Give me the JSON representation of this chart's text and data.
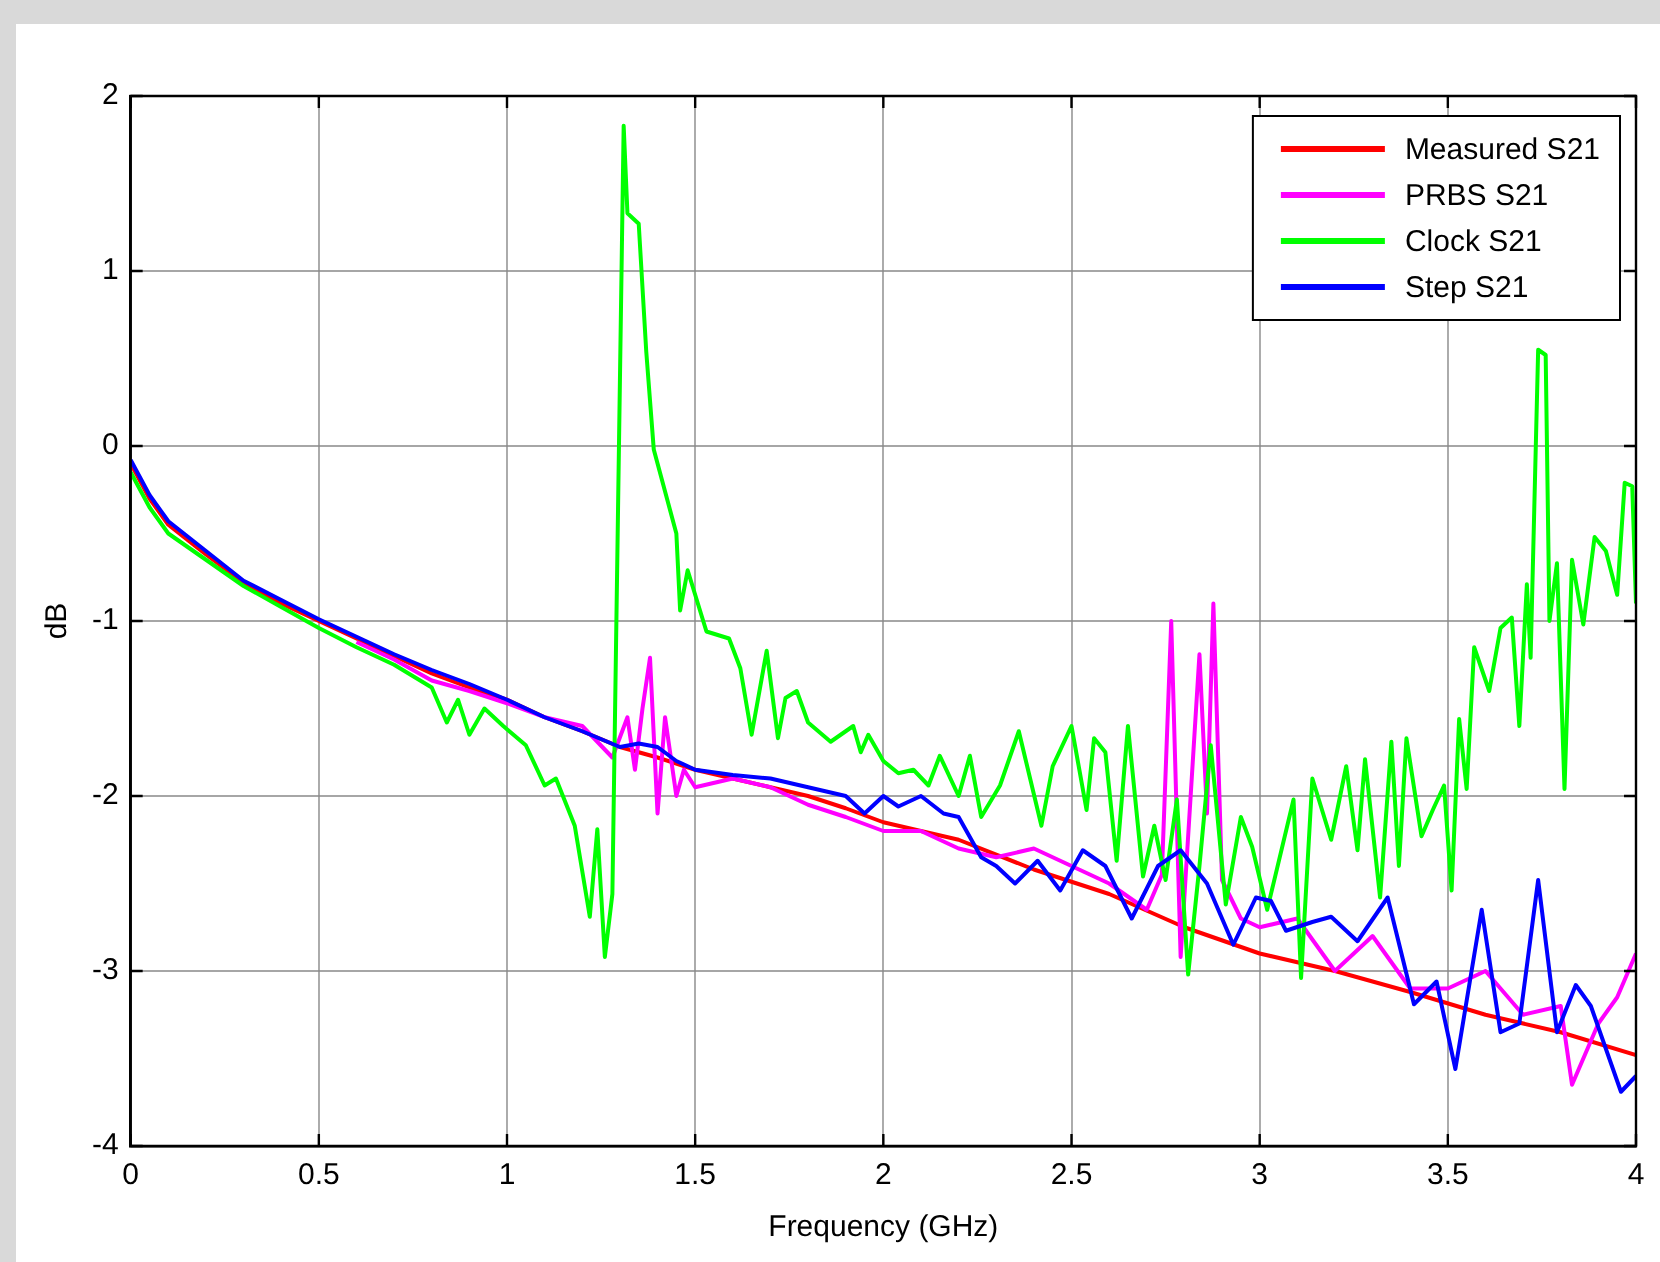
{
  "chart_data": {
    "type": "line",
    "xlabel": "Frequency (GHz)",
    "ylabel": "dB",
    "xlim": [
      0,
      4
    ],
    "xticks": [
      0,
      0.5,
      1,
      1.5,
      2,
      2.5,
      3,
      3.5,
      4
    ],
    "ylim": [
      -4,
      2
    ],
    "yticks": [
      -4,
      -3,
      -2,
      -1,
      0,
      1,
      2
    ],
    "grid": true,
    "legend": "top right",
    "marker": "none",
    "line_style": "solid",
    "series": [
      {
        "name": "Measured S21",
        "color": "#ff0000",
        "x": [
          0,
          0.05,
          0.1,
          0.2,
          0.3,
          0.4,
          0.5,
          0.6,
          0.7,
          0.8,
          0.9,
          1.0,
          1.1,
          1.2,
          1.3,
          1.4,
          1.5,
          1.6,
          1.7,
          1.8,
          1.9,
          2.0,
          2.2,
          2.4,
          2.6,
          2.8,
          3.0,
          3.2,
          3.4,
          3.6,
          3.8,
          4.0
        ],
        "values": [
          -0.1,
          -0.3,
          -0.45,
          -0.62,
          -0.78,
          -0.9,
          -1.0,
          -1.1,
          -1.2,
          -1.3,
          -1.38,
          -1.45,
          -1.55,
          -1.63,
          -1.72,
          -1.78,
          -1.85,
          -1.9,
          -1.95,
          -2.0,
          -2.07,
          -2.15,
          -2.25,
          -2.42,
          -2.56,
          -2.75,
          -2.9,
          -3.0,
          -3.12,
          -3.25,
          -3.35,
          -3.48
        ]
      },
      {
        "name": "PRBS S21",
        "color": "#ff00ff",
        "x": [
          0.6,
          0.7,
          0.8,
          0.9,
          1.0,
          1.1,
          1.2,
          1.28,
          1.32,
          1.34,
          1.36,
          1.38,
          1.4,
          1.42,
          1.45,
          1.47,
          1.5,
          1.6,
          1.7,
          1.8,
          1.9,
          2.0,
          2.1,
          2.2,
          2.3,
          2.4,
          2.5,
          2.6,
          2.7,
          2.74,
          2.765,
          2.79,
          2.84,
          2.86,
          2.877,
          2.9,
          2.95,
          3.0,
          3.1,
          3.2,
          3.3,
          3.4,
          3.5,
          3.6,
          3.7,
          3.8,
          3.83,
          3.9,
          3.95,
          4.0
        ],
        "values": [
          -1.12,
          -1.22,
          -1.34,
          -1.4,
          -1.47,
          -1.55,
          -1.6,
          -1.78,
          -1.55,
          -1.85,
          -1.5,
          -1.21,
          -2.1,
          -1.55,
          -2.0,
          -1.85,
          -1.95,
          -1.9,
          -1.95,
          -2.05,
          -2.12,
          -2.2,
          -2.2,
          -2.3,
          -2.35,
          -2.3,
          -2.4,
          -2.5,
          -2.65,
          -2.45,
          -1.0,
          -2.92,
          -1.19,
          -2.1,
          -0.9,
          -2.48,
          -2.7,
          -2.75,
          -2.7,
          -3.0,
          -2.8,
          -3.1,
          -3.1,
          -3.0,
          -3.25,
          -3.2,
          -3.65,
          -3.3,
          -3.15,
          -2.9
        ]
      },
      {
        "name": "Clock S21",
        "color": "#00ff00",
        "x": [
          0,
          0.05,
          0.1,
          0.2,
          0.3,
          0.4,
          0.5,
          0.6,
          0.7,
          0.8,
          0.84,
          0.87,
          0.9,
          0.94,
          0.99,
          1.05,
          1.1,
          1.13,
          1.18,
          1.22,
          1.24,
          1.26,
          1.28,
          1.31,
          1.32,
          1.35,
          1.37,
          1.39,
          1.45,
          1.46,
          1.48,
          1.53,
          1.59,
          1.62,
          1.65,
          1.69,
          1.72,
          1.74,
          1.77,
          1.8,
          1.86,
          1.92,
          1.94,
          1.96,
          2.0,
          2.04,
          2.08,
          2.12,
          2.15,
          2.2,
          2.23,
          2.26,
          2.31,
          2.36,
          2.39,
          2.42,
          2.45,
          2.5,
          2.54,
          2.56,
          2.59,
          2.62,
          2.65,
          2.69,
          2.72,
          2.75,
          2.78,
          2.81,
          2.84,
          2.87,
          2.91,
          2.95,
          2.98,
          3.02,
          3.09,
          3.11,
          3.14,
          3.19,
          3.23,
          3.26,
          3.28,
          3.32,
          3.35,
          3.37,
          3.39,
          3.43,
          3.46,
          3.49,
          3.51,
          3.53,
          3.55,
          3.57,
          3.61,
          3.64,
          3.67,
          3.69,
          3.71,
          3.72,
          3.74,
          3.76,
          3.77,
          3.79,
          3.81,
          3.83,
          3.86,
          3.89,
          3.92,
          3.95,
          3.97,
          3.99,
          4.0
        ],
        "values": [
          -0.15,
          -0.35,
          -0.5,
          -0.65,
          -0.8,
          -0.92,
          -1.04,
          -1.15,
          -1.25,
          -1.38,
          -1.58,
          -1.45,
          -1.65,
          -1.5,
          -1.6,
          -1.71,
          -1.94,
          -1.9,
          -2.17,
          -2.69,
          -2.19,
          -2.92,
          -2.56,
          1.83,
          1.33,
          1.27,
          0.54,
          -0.02,
          -0.5,
          -0.94,
          -0.71,
          -1.06,
          -1.1,
          -1.27,
          -1.65,
          -1.17,
          -1.67,
          -1.44,
          -1.4,
          -1.58,
          -1.69,
          -1.6,
          -1.75,
          -1.65,
          -1.8,
          -1.87,
          -1.85,
          -1.94,
          -1.77,
          -2.0,
          -1.77,
          -2.12,
          -1.94,
          -1.63,
          -1.9,
          -2.17,
          -1.83,
          -1.6,
          -2.08,
          -1.67,
          -1.75,
          -2.37,
          -1.6,
          -2.46,
          -2.17,
          -2.48,
          -2.02,
          -3.02,
          -2.4,
          -1.71,
          -2.62,
          -2.12,
          -2.29,
          -2.65,
          -2.02,
          -3.04,
          -1.9,
          -2.25,
          -1.83,
          -2.31,
          -1.79,
          -2.58,
          -1.69,
          -2.4,
          -1.67,
          -2.23,
          -2.08,
          -1.94,
          -2.54,
          -1.56,
          -1.96,
          -1.15,
          -1.4,
          -1.04,
          -0.98,
          -1.6,
          -0.79,
          -1.21,
          0.55,
          0.52,
          -1.0,
          -0.67,
          -1.96,
          -0.65,
          -1.02,
          -0.52,
          -0.6,
          -0.85,
          -0.21,
          -0.23,
          -0.9
        ]
      },
      {
        "name": "Step S21",
        "color": "#0000ff",
        "x": [
          0,
          0.05,
          0.1,
          0.2,
          0.3,
          0.4,
          0.5,
          0.6,
          0.7,
          0.8,
          0.9,
          1.0,
          1.1,
          1.2,
          1.3,
          1.35,
          1.4,
          1.45,
          1.5,
          1.6,
          1.7,
          1.8,
          1.9,
          1.95,
          2.0,
          2.04,
          2.1,
          2.16,
          2.2,
          2.26,
          2.3,
          2.35,
          2.41,
          2.47,
          2.53,
          2.59,
          2.66,
          2.73,
          2.79,
          2.86,
          2.93,
          2.99,
          3.03,
          3.07,
          3.14,
          3.19,
          3.26,
          3.34,
          3.41,
          3.47,
          3.52,
          3.59,
          3.64,
          3.69,
          3.74,
          3.79,
          3.84,
          3.88,
          3.96,
          4.0
        ],
        "values": [
          -0.08,
          -0.28,
          -0.43,
          -0.6,
          -0.77,
          -0.88,
          -0.99,
          -1.09,
          -1.19,
          -1.28,
          -1.36,
          -1.45,
          -1.55,
          -1.63,
          -1.72,
          -1.7,
          -1.72,
          -1.8,
          -1.85,
          -1.88,
          -1.9,
          -1.95,
          -2.0,
          -2.1,
          -2.0,
          -2.06,
          -2.0,
          -2.1,
          -2.12,
          -2.35,
          -2.4,
          -2.5,
          -2.37,
          -2.54,
          -2.31,
          -2.4,
          -2.7,
          -2.4,
          -2.31,
          -2.5,
          -2.85,
          -2.58,
          -2.6,
          -2.77,
          -2.72,
          -2.69,
          -2.83,
          -2.58,
          -3.19,
          -3.06,
          -3.56,
          -2.65,
          -3.35,
          -3.3,
          -2.48,
          -3.35,
          -3.08,
          -3.2,
          -3.69,
          -3.6
        ]
      }
    ]
  }
}
